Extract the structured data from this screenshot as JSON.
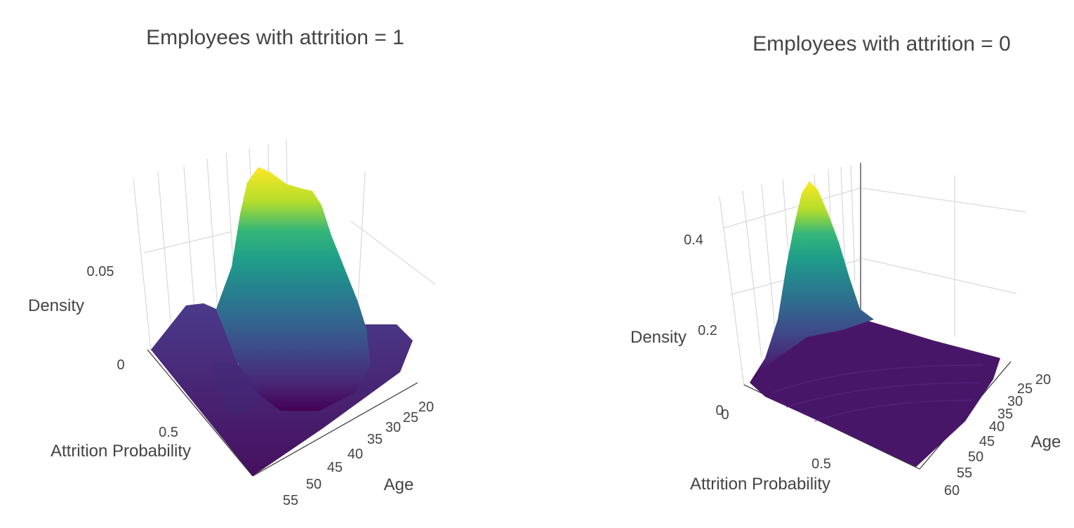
{
  "chart_data": [
    {
      "type": "surface",
      "title": "Employees with attrition = 1",
      "xlabel": "Attrition Probability",
      "ylabel": "Age",
      "zlabel": "Density",
      "x_ticks": [
        "0.5"
      ],
      "y_ticks": [
        "20",
        "25",
        "30",
        "35",
        "40",
        "45",
        "50",
        "55"
      ],
      "z_ticks": [
        "0",
        "0.05"
      ],
      "xlim": [
        0,
        1
      ],
      "ylim": [
        18,
        60
      ],
      "zlim": [
        0,
        0.1
      ],
      "colorscale": "Viridis",
      "peak": {
        "x": 0.5,
        "y": 30,
        "z": 0.09
      },
      "grid": true
    },
    {
      "type": "surface",
      "title": "Employees with attrition = 0",
      "xlabel": "Attrition Probability",
      "ylabel": "Age",
      "zlabel": "Density",
      "x_ticks": [
        "0",
        "0.5"
      ],
      "y_ticks": [
        "20",
        "25",
        "30",
        "35",
        "40",
        "45",
        "50",
        "55",
        "60"
      ],
      "z_ticks": [
        "0",
        "0.2",
        "0.4"
      ],
      "xlim": [
        0,
        1
      ],
      "ylim": [
        18,
        60
      ],
      "zlim": [
        0,
        0.5
      ],
      "colorscale": "Viridis",
      "peak": {
        "x": 0.05,
        "y": 30,
        "z": 0.48
      },
      "grid": true
    }
  ],
  "colors": {
    "viridis": [
      "#440154",
      "#482878",
      "#3e4989",
      "#31688e",
      "#26828e",
      "#1f9e89",
      "#35b779",
      "#6ece58",
      "#b5de2b",
      "#fde725"
    ]
  }
}
